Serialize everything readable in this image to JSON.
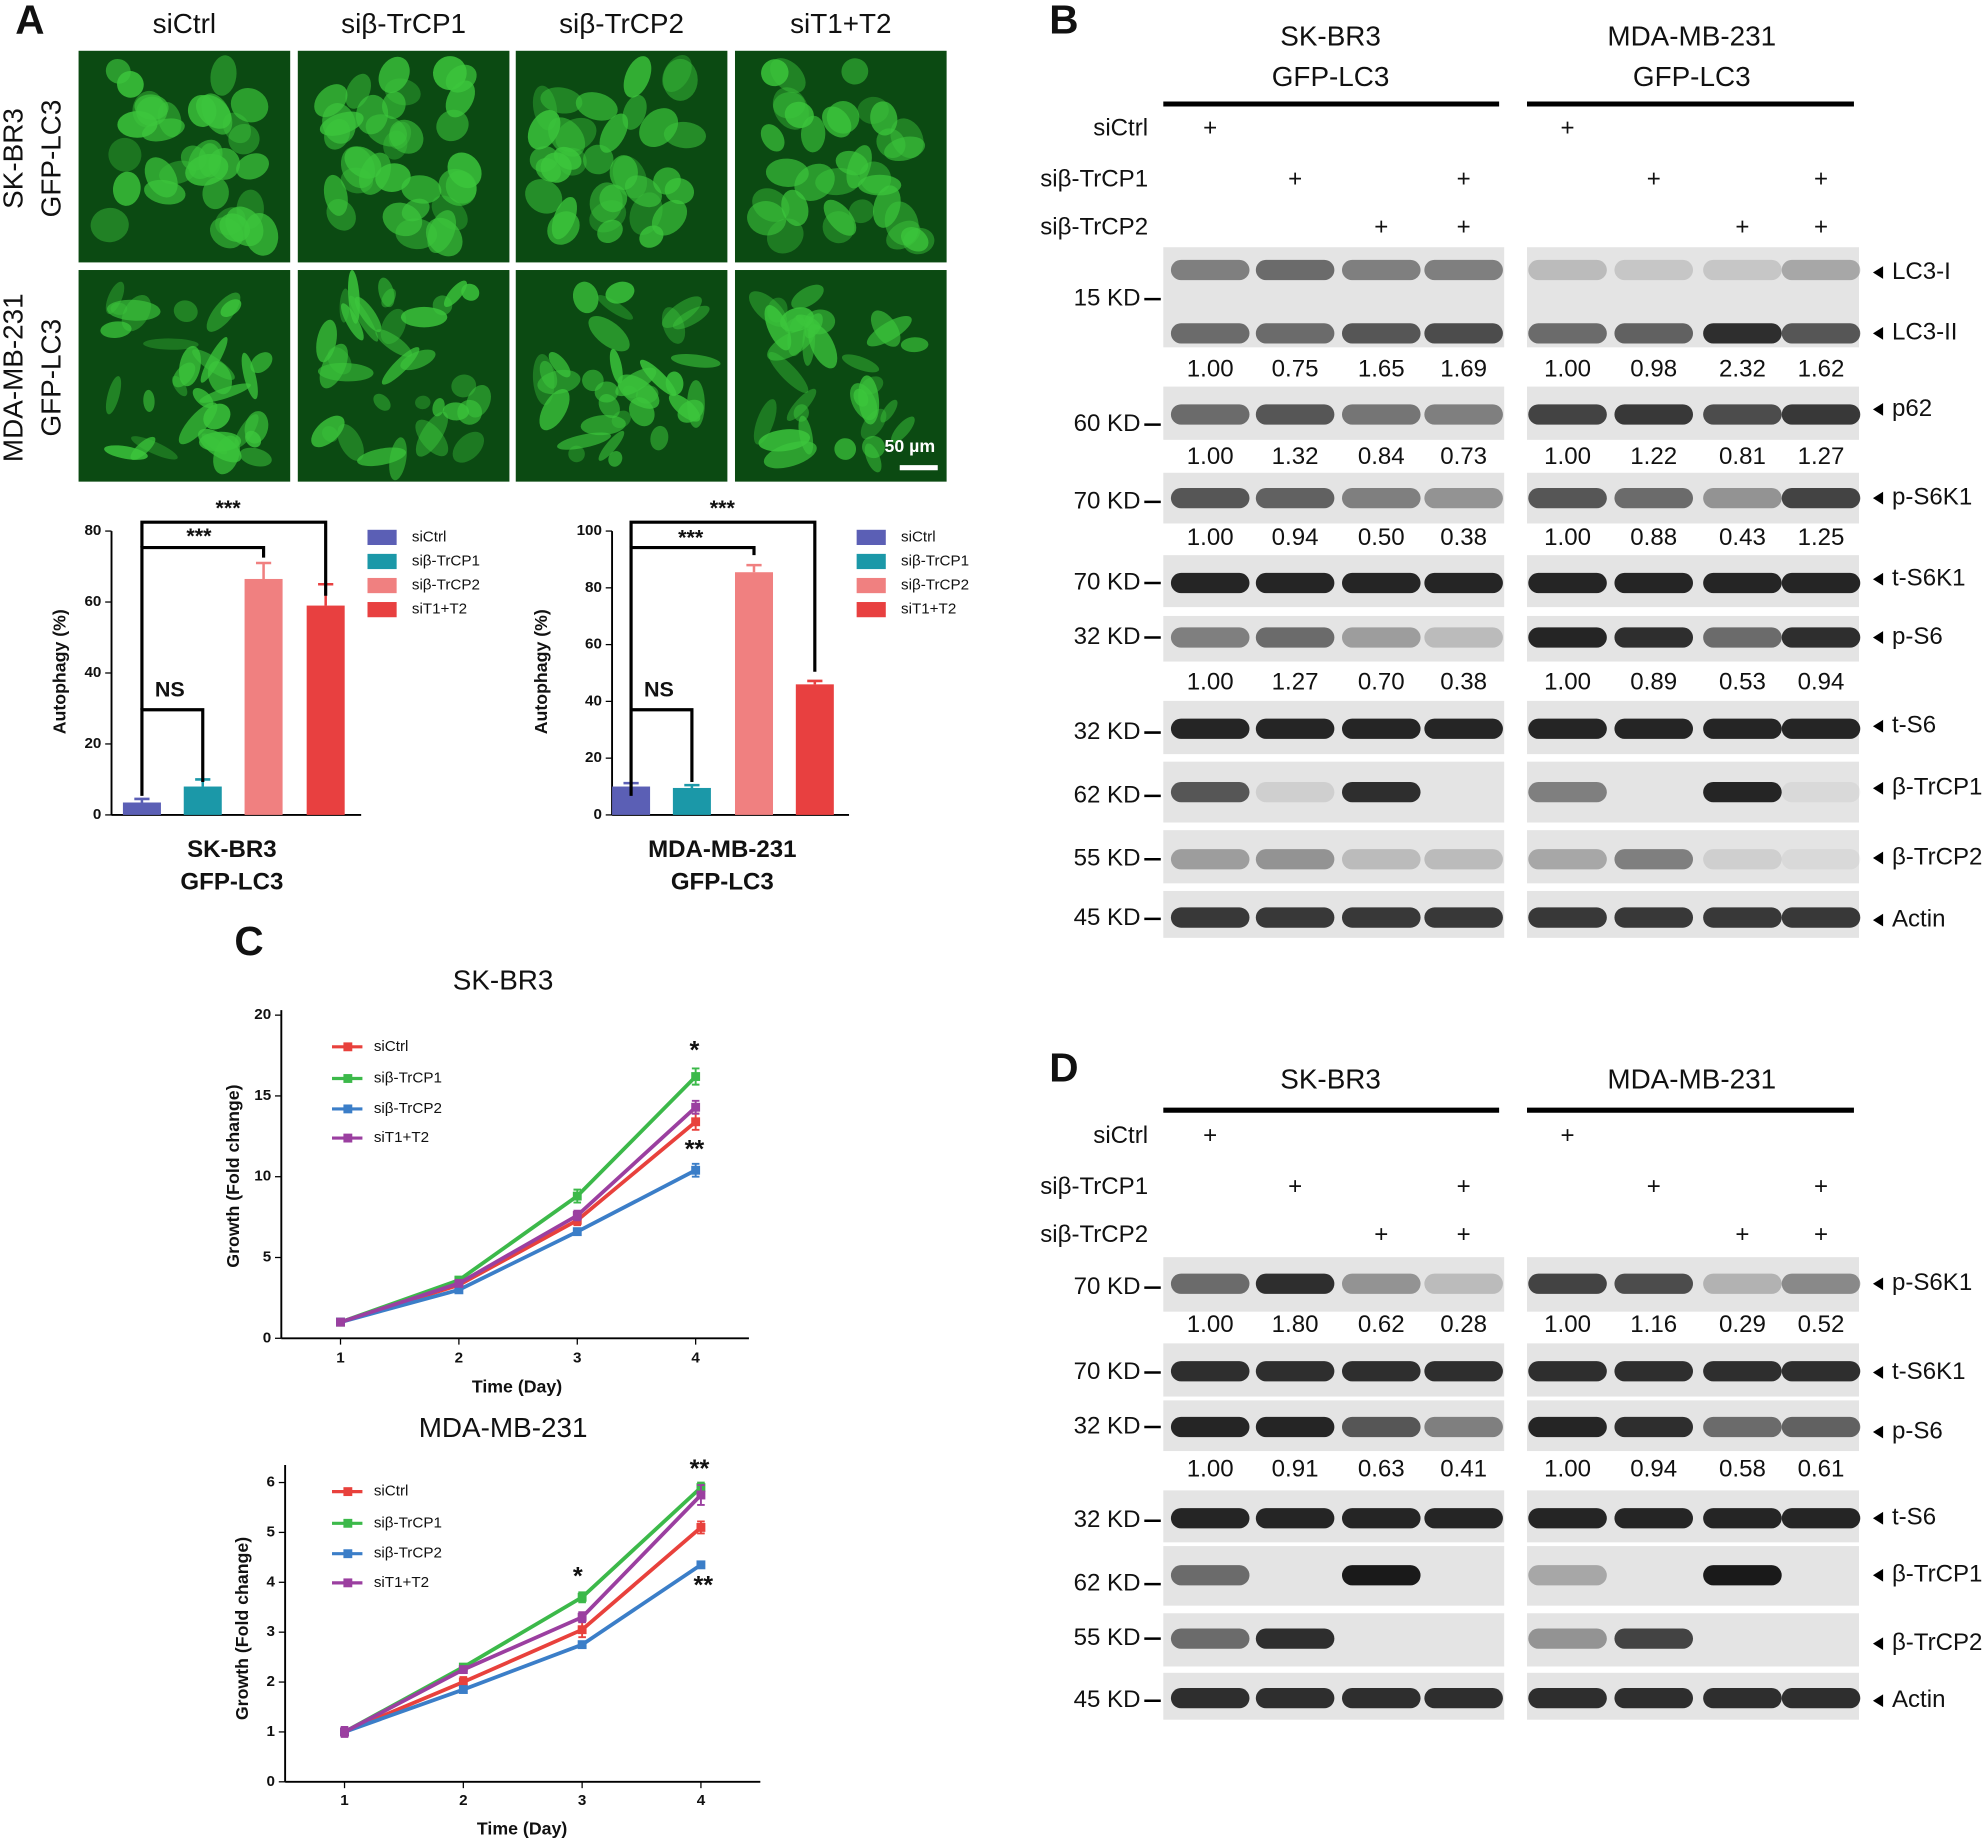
{
  "panels": [
    "A",
    "B",
    "C",
    "D"
  ],
  "microscopy": {
    "columns": [
      "siCtrl",
      "siβ-TrCP1",
      "siβ-TrCP2",
      "siT1+T2"
    ],
    "rows": [
      [
        "SK-BR3",
        "GFP-LC3"
      ],
      [
        "MDA-MB-231",
        "GFP-LC3"
      ]
    ],
    "scale_bar": "50 µm"
  },
  "chart_data": [
    {
      "type": "bar",
      "categories": [
        "siCtrl",
        "siβ-TrCP1",
        "siβ-TrCP2",
        "siT1+T2"
      ],
      "values": [
        3.5,
        8,
        66.5,
        59
      ],
      "errors": [
        1,
        2,
        4.5,
        6
      ],
      "colors": [
        "#5b5fb5",
        "#1b98a8",
        "#f08080",
        "#e84040"
      ],
      "ylabel": "Autophagy (%)",
      "xlabel": [
        "SK-BR3",
        "GFP-LC3"
      ],
      "ylim": [
        0,
        80
      ],
      "yticks": [
        0,
        20,
        40,
        60,
        80
      ],
      "annotations": [
        "NS",
        "***",
        "***"
      ]
    },
    {
      "type": "bar",
      "categories": [
        "siCtrl",
        "siβ-TrCP1",
        "siβ-TrCP2",
        "siT1+T2"
      ],
      "values": [
        10,
        9.5,
        85.5,
        46
      ],
      "errors": [
        1.2,
        1,
        2.5,
        1.2
      ],
      "colors": [
        "#5b5fb5",
        "#1b98a8",
        "#f08080",
        "#e84040"
      ],
      "ylabel": "Autophagy (%)",
      "xlabel": [
        "MDA-MB-231",
        "GFP-LC3"
      ],
      "ylim": [
        0,
        100
      ],
      "yticks": [
        0,
        20,
        40,
        60,
        80,
        100
      ],
      "annotations": [
        "NS",
        "***",
        "***"
      ]
    },
    {
      "type": "line",
      "title": "SK-BR3",
      "xlabel": "Time (Day)",
      "ylabel": "Growth (Fold change)",
      "x": [
        1,
        2,
        3,
        4
      ],
      "xlim": [
        0.5,
        4.45
      ],
      "xticks": [
        1,
        2,
        3,
        4
      ],
      "ylim": [
        0,
        20
      ],
      "yticks": [
        0,
        5,
        10,
        15,
        20
      ],
      "series": [
        {
          "name": "siCtrl",
          "color": "#e8413c",
          "values": [
            1,
            3.3,
            7.3,
            13.4
          ],
          "errors": [
            0.1,
            0.2,
            0.3,
            0.5
          ]
        },
        {
          "name": "siβ-TrCP1",
          "color": "#3cb94a",
          "values": [
            1,
            3.6,
            8.8,
            16.2
          ],
          "errors": [
            0.1,
            0.2,
            0.4,
            0.5
          ]
        },
        {
          "name": "siβ-TrCP2",
          "color": "#3b7ec8",
          "values": [
            1,
            3.0,
            6.6,
            10.4
          ],
          "errors": [
            0.1,
            0.2,
            0.2,
            0.4
          ]
        },
        {
          "name": "siT1+T2",
          "color": "#9b3fa0",
          "values": [
            1,
            3.4,
            7.6,
            14.3
          ],
          "errors": [
            0.1,
            0.2,
            0.3,
            0.4
          ]
        }
      ],
      "annotations": [
        "*",
        "**"
      ]
    },
    {
      "type": "line",
      "title": "MDA-MB-231",
      "xlabel": "Time (Day)",
      "ylabel": "Growth (Fold change)",
      "x": [
        1,
        2,
        3,
        4
      ],
      "xlim": [
        0.5,
        4.5
      ],
      "xticks": [
        1,
        2,
        3,
        4
      ],
      "ylim": [
        0,
        6.25
      ],
      "yticks": [
        0,
        1,
        2,
        3,
        4,
        5,
        6
      ],
      "series": [
        {
          "name": "siCtrl",
          "color": "#e8413c",
          "values": [
            1.0,
            2.0,
            3.05,
            5.1
          ],
          "errors": [
            0.05,
            0.1,
            0.15,
            0.12
          ]
        },
        {
          "name": "siβ-TrCP1",
          "color": "#3cb94a",
          "values": [
            1.0,
            2.3,
            3.7,
            5.9
          ],
          "errors": [
            0.05,
            0.06,
            0.1,
            0.1
          ]
        },
        {
          "name": "siβ-TrCP2",
          "color": "#3b7ec8",
          "values": [
            1.0,
            1.85,
            2.75,
            4.35
          ],
          "errors": [
            0.05,
            0.05,
            0.05,
            0.05
          ]
        },
        {
          "name": "siT1+T2",
          "color": "#9b3fa0",
          "values": [
            1.0,
            2.25,
            3.3,
            5.75
          ],
          "errors": [
            0.1,
            0.05,
            0.1,
            0.2
          ]
        }
      ],
      "annotations": [
        "*",
        "**",
        "**"
      ]
    }
  ],
  "blots": [
    {
      "groups": [
        [
          "SK-BR3",
          "GFP-LC3"
        ],
        [
          "MDA-MB-231",
          "GFP-LC3"
        ]
      ],
      "treatments": [
        {
          "label": "siCtrl",
          "lanes": [
            "+",
            null,
            null,
            null,
            "+",
            null,
            null,
            null
          ]
        },
        {
          "label": "siβ-TrCP1",
          "lanes": [
            null,
            "+",
            null,
            "+",
            null,
            "+",
            null,
            "+"
          ]
        },
        {
          "label": "siβ-TrCP2",
          "lanes": [
            null,
            null,
            "+",
            "+",
            null,
            null,
            "+",
            "+"
          ]
        }
      ],
      "rows": [
        {
          "kd": "15 KD",
          "names": [
            "LC3-I",
            "LC3-II"
          ],
          "quant": [
            "1.00",
            "0.75",
            "1.65",
            "1.69",
            "1.00",
            "0.98",
            "2.32",
            "1.62"
          ]
        },
        {
          "kd": "60 KD",
          "names": [
            "p62"
          ],
          "quant": [
            "1.00",
            "1.32",
            "0.84",
            "0.73",
            "1.00",
            "1.22",
            "0.81",
            "1.27"
          ]
        },
        {
          "kd": "70 KD",
          "names": [
            "p-S6K1"
          ],
          "quant": [
            "1.00",
            "0.94",
            "0.50",
            "0.38",
            "1.00",
            "0.88",
            "0.43",
            "1.25"
          ]
        },
        {
          "kd": "70 KD",
          "names": [
            "t-S6K1"
          ]
        },
        {
          "kd": "32 KD",
          "names": [
            "p-S6"
          ],
          "quant": [
            "1.00",
            "1.27",
            "0.70",
            "0.38",
            "1.00",
            "0.89",
            "0.53",
            "0.94"
          ]
        },
        {
          "kd": "32 KD",
          "names": [
            "t-S6"
          ]
        },
        {
          "kd": "62 KD",
          "names": [
            "β-TrCP1"
          ]
        },
        {
          "kd": "55 KD",
          "names": [
            "β-TrCP2"
          ]
        },
        {
          "kd": "45 KD",
          "names": [
            "Actin"
          ]
        }
      ]
    },
    {
      "groups": [
        [
          "SK-BR3"
        ],
        [
          "MDA-MB-231"
        ]
      ],
      "treatments": [
        {
          "label": "siCtrl",
          "lanes": [
            "+",
            null,
            null,
            null,
            "+",
            null,
            null,
            null
          ]
        },
        {
          "label": "siβ-TrCP1",
          "lanes": [
            null,
            "+",
            null,
            "+",
            null,
            "+",
            null,
            "+"
          ]
        },
        {
          "label": "siβ-TrCP2",
          "lanes": [
            null,
            null,
            "+",
            "+",
            null,
            null,
            "+",
            "+"
          ]
        }
      ],
      "rows": [
        {
          "kd": "70 KD",
          "names": [
            "p-S6K1"
          ],
          "quant": [
            "1.00",
            "1.80",
            "0.62",
            "0.28",
            "1.00",
            "1.16",
            "0.29",
            "0.52"
          ]
        },
        {
          "kd": "70 KD",
          "names": [
            "t-S6K1"
          ]
        },
        {
          "kd": "32 KD",
          "names": [
            "p-S6"
          ],
          "quant": [
            "1.00",
            "0.91",
            "0.63",
            "0.41",
            "1.00",
            "0.94",
            "0.58",
            "0.61"
          ]
        },
        {
          "kd": "32 KD",
          "names": [
            "t-S6"
          ]
        },
        {
          "kd": "62 KD",
          "names": [
            "β-TrCP1"
          ]
        },
        {
          "kd": "55 KD",
          "names": [
            "β-TrCP2"
          ]
        },
        {
          "kd": "45 KD",
          "names": [
            "Actin"
          ]
        }
      ]
    }
  ]
}
